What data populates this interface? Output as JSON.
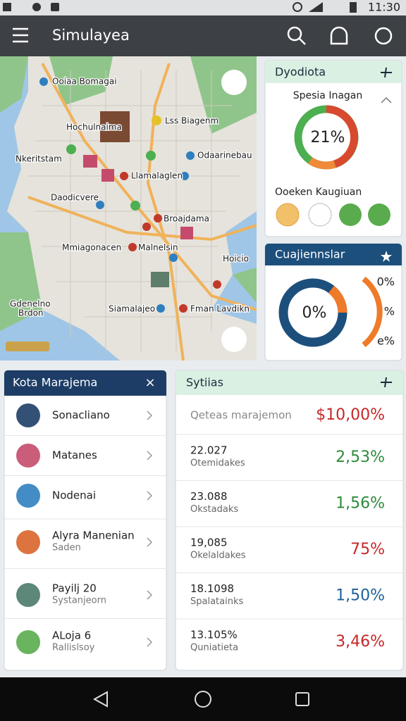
{
  "status_bar": {
    "time": "11:30"
  },
  "app_bar": {
    "title": "Simulayea"
  },
  "map": {
    "labels": [
      "Ooiaa Bomagai",
      "Hochulnaima",
      "Lss Biagenm",
      "Nkeritstam",
      "Odaarinebau",
      "Llamalaglen",
      "Daodicvere",
      "Broajdama",
      "Mmiagonacen",
      "Malnelsin",
      "Hoicio",
      "Gdenelno",
      "Brdon",
      "Siamalajeo",
      "Fman Lavdikn"
    ]
  },
  "card_top": {
    "title": "Dyodiota",
    "subtitle": "Spesia Inagan",
    "donut_label": "21%",
    "section": "Ooeken Kaugiuan"
  },
  "card_mid": {
    "title": "Cuajiennslar",
    "donut_label": "0%",
    "side_labels": [
      "0%",
      "%",
      "e%"
    ]
  },
  "list_card": {
    "title": "Kota Marajema",
    "close": "×",
    "items": [
      {
        "title": "Sonacliano"
      },
      {
        "title": "Matanes"
      },
      {
        "title": "Nodenai"
      },
      {
        "title": "Alyra Manenian",
        "subtitle": "Saden"
      },
      {
        "title": "Payilj 20",
        "subtitle": "Systanjeorn"
      },
      {
        "title": "ALoja 6",
        "subtitle": "Rallislsoy"
      }
    ]
  },
  "stats_card": {
    "title": "Sytiias",
    "header": {
      "label": "Qeteas marajemon",
      "value": "$10,00%",
      "color": "#c62828"
    },
    "rows": [
      {
        "number": "22.027",
        "label": "Otemidakes",
        "value": "2,53%",
        "color": "#2e8b3a"
      },
      {
        "number": "23.088",
        "label": "Okstadaks",
        "value": "1,56%",
        "color": "#2e8b3a"
      },
      {
        "number": "19,085",
        "label": "Okelaldakes",
        "value": "75%",
        "color": "#c62828"
      },
      {
        "number": "18.1098",
        "label": "Spalatainks",
        "value": "1,50%",
        "color": "#1f5f99"
      },
      {
        "number": "13.105%",
        "label": "Quniatieta",
        "value": "3,46%",
        "color": "#c62828"
      }
    ]
  }
}
